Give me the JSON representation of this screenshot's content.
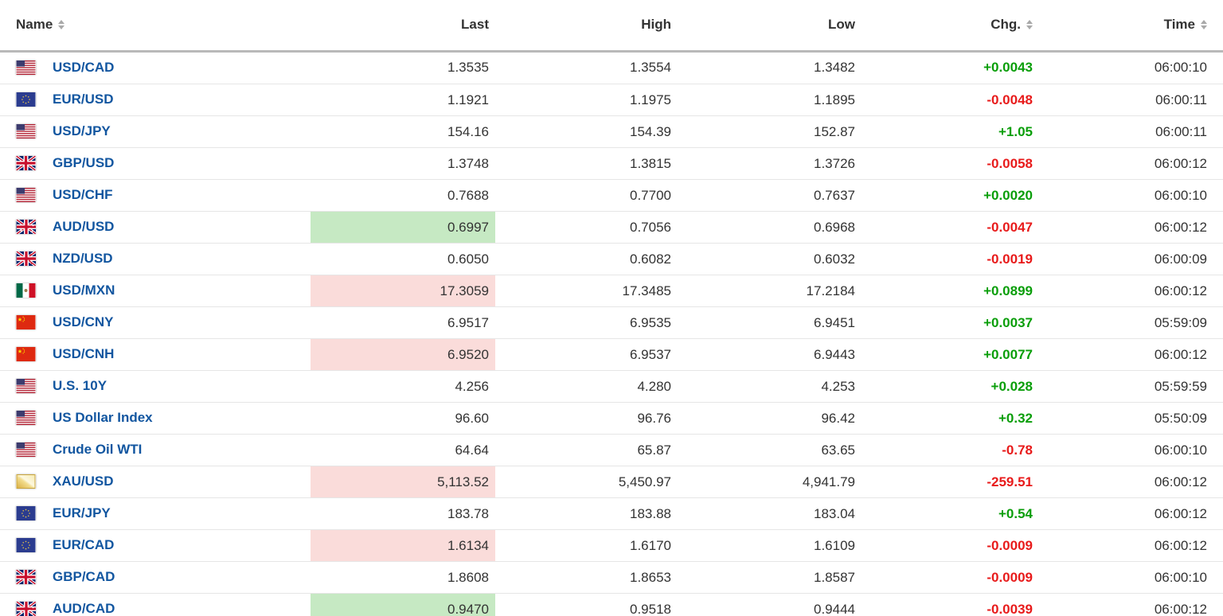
{
  "table": {
    "columns": [
      {
        "label": "Name",
        "sortable": true
      },
      {
        "label": "Last",
        "sortable": false
      },
      {
        "label": "High",
        "sortable": false
      },
      {
        "label": "Low",
        "sortable": false
      },
      {
        "label": "Chg.",
        "sortable": true
      },
      {
        "label": "Time",
        "sortable": true
      }
    ],
    "rows": [
      {
        "flag": "us-flag-icon",
        "name": "USD/CAD",
        "last": "1.3535",
        "high": "1.3554",
        "low": "1.3482",
        "chg": "+0.0043",
        "dir": "up",
        "highlight": null,
        "time": "06:00:10"
      },
      {
        "flag": "eu-flag-icon",
        "name": "EUR/USD",
        "last": "1.1921",
        "high": "1.1975",
        "low": "1.1895",
        "chg": "-0.0048",
        "dir": "down",
        "highlight": null,
        "time": "06:00:11"
      },
      {
        "flag": "us-flag-icon",
        "name": "USD/JPY",
        "last": "154.16",
        "high": "154.39",
        "low": "152.87",
        "chg": "+1.05",
        "dir": "up",
        "highlight": null,
        "time": "06:00:11"
      },
      {
        "flag": "uk-flag-icon",
        "name": "GBP/USD",
        "last": "1.3748",
        "high": "1.3815",
        "low": "1.3726",
        "chg": "-0.0058",
        "dir": "down",
        "highlight": null,
        "time": "06:00:12"
      },
      {
        "flag": "us-flag-icon",
        "name": "USD/CHF",
        "last": "0.7688",
        "high": "0.7700",
        "low": "0.7637",
        "chg": "+0.0020",
        "dir": "up",
        "highlight": null,
        "time": "06:00:10"
      },
      {
        "flag": "au-flag-icon",
        "name": "AUD/USD",
        "last": "0.6997",
        "high": "0.7056",
        "low": "0.6968",
        "chg": "-0.0047",
        "dir": "down",
        "highlight": "up",
        "time": "06:00:12"
      },
      {
        "flag": "nz-flag-icon",
        "name": "NZD/USD",
        "last": "0.6050",
        "high": "0.6082",
        "low": "0.6032",
        "chg": "-0.0019",
        "dir": "down",
        "highlight": null,
        "time": "06:00:09"
      },
      {
        "flag": "mx-flag-icon",
        "name": "USD/MXN",
        "last": "17.3059",
        "high": "17.3485",
        "low": "17.2184",
        "chg": "+0.0899",
        "dir": "up",
        "highlight": "down",
        "time": "06:00:12"
      },
      {
        "flag": "cn-flag-icon",
        "name": "USD/CNY",
        "last": "6.9517",
        "high": "6.9535",
        "low": "6.9451",
        "chg": "+0.0037",
        "dir": "up",
        "highlight": null,
        "time": "05:59:09"
      },
      {
        "flag": "cn-flag-icon",
        "name": "USD/CNH",
        "last": "6.9520",
        "high": "6.9537",
        "low": "6.9443",
        "chg": "+0.0077",
        "dir": "up",
        "highlight": "down",
        "time": "06:00:12"
      },
      {
        "flag": "us-flag-icon",
        "name": "U.S. 10Y",
        "last": "4.256",
        "high": "4.280",
        "low": "4.253",
        "chg": "+0.028",
        "dir": "up",
        "highlight": null,
        "time": "05:59:59"
      },
      {
        "flag": "us-flag-icon",
        "name": "US Dollar Index",
        "last": "96.60",
        "high": "96.76",
        "low": "96.42",
        "chg": "+0.32",
        "dir": "up",
        "highlight": null,
        "time": "05:50:09"
      },
      {
        "flag": "us-flag-icon",
        "name": "Crude Oil WTI",
        "last": "64.64",
        "high": "65.87",
        "low": "63.65",
        "chg": "-0.78",
        "dir": "down",
        "highlight": null,
        "time": "06:00:10"
      },
      {
        "flag": "gold-bar-icon",
        "name": "XAU/USD",
        "last": "5,113.52",
        "high": "5,450.97",
        "low": "4,941.79",
        "chg": "-259.51",
        "dir": "down",
        "highlight": "down",
        "time": "06:00:12"
      },
      {
        "flag": "eu-flag-icon",
        "name": "EUR/JPY",
        "last": "183.78",
        "high": "183.88",
        "low": "183.04",
        "chg": "+0.54",
        "dir": "up",
        "highlight": null,
        "time": "06:00:12"
      },
      {
        "flag": "eu-flag-icon",
        "name": "EUR/CAD",
        "last": "1.6134",
        "high": "1.6170",
        "low": "1.6109",
        "chg": "-0.0009",
        "dir": "down",
        "highlight": "down",
        "time": "06:00:12"
      },
      {
        "flag": "uk-flag-icon",
        "name": "GBP/CAD",
        "last": "1.8608",
        "high": "1.8653",
        "low": "1.8587",
        "chg": "-0.0009",
        "dir": "down",
        "highlight": null,
        "time": "06:00:10"
      },
      {
        "flag": "au-flag-icon",
        "name": "AUD/CAD",
        "last": "0.9470",
        "high": "0.9518",
        "low": "0.9444",
        "chg": "-0.0039",
        "dir": "down",
        "highlight": "up",
        "time": "06:00:12"
      }
    ]
  },
  "colors": {
    "link_blue": "#1256a0",
    "up_green": "#0a9e0a",
    "down_red": "#e81b1b",
    "highlight_up_bg": "#c6e9c3",
    "highlight_down_bg": "#fadcda",
    "header_border": "#b9b9b9",
    "row_border": "#e6e6e6"
  }
}
